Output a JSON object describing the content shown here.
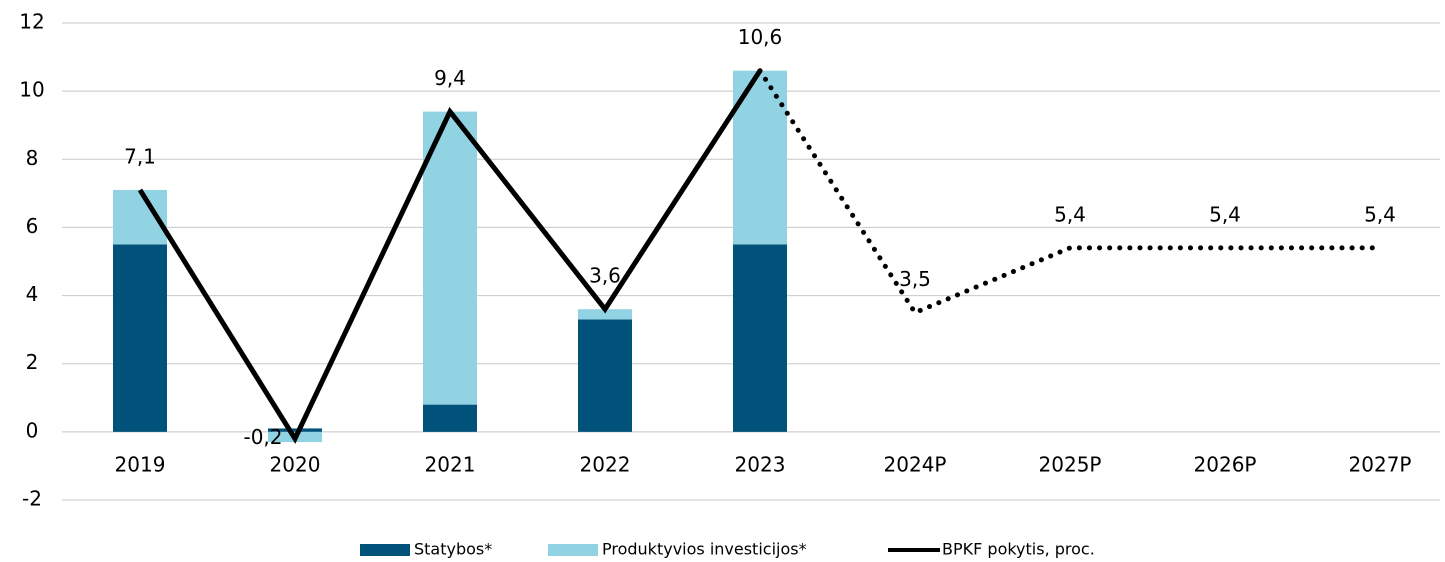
{
  "chart_data": {
    "type": "bar_line",
    "categories": [
      "2019",
      "2020",
      "2021",
      "2022",
      "2023",
      "2024P",
      "2025P",
      "2026P",
      "2027P"
    ],
    "series": [
      {
        "name": "Statybos*",
        "type": "bar",
        "color": "#00527a",
        "values": [
          5.5,
          0.1,
          0.8,
          3.3,
          5.5,
          null,
          null,
          null,
          null
        ]
      },
      {
        "name": "Produktyvios investicijos*",
        "type": "bar",
        "color": "#92d3e3",
        "values": [
          1.6,
          -0.3,
          8.6,
          0.3,
          5.1,
          null,
          null,
          null,
          null
        ]
      },
      {
        "name": "BPKF pokytis, proc.",
        "type": "line",
        "color": "#000000",
        "dotted_after": "2023",
        "values": [
          7.1,
          -0.2,
          9.4,
          3.6,
          10.6,
          3.5,
          5.4,
          5.4,
          5.4
        ],
        "value_labels": [
          "7,1",
          "-0,2",
          "9,4",
          "3,6",
          "10,6",
          "3,5",
          "5,4",
          "5,4",
          "5,4"
        ]
      }
    ],
    "ylim": [
      -2,
      12
    ],
    "yticks": [
      -2,
      0,
      2,
      4,
      6,
      8,
      10,
      12
    ],
    "grid": true,
    "legend": "bottom"
  }
}
